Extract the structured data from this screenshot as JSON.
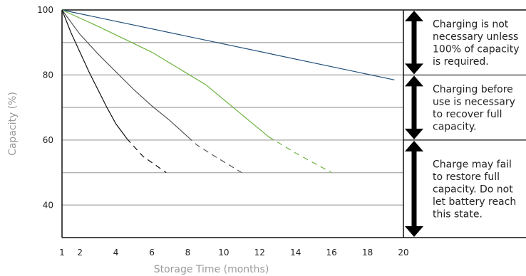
{
  "chart_data": {
    "type": "line",
    "xlabel": "Storage Time (months)",
    "ylabel": "Capacity (%)",
    "xlim": [
      1,
      20
    ],
    "ylim": [
      30,
      100
    ],
    "xticks": [
      "1",
      "2",
      "4",
      "6",
      "8",
      "10",
      "12",
      "14",
      "16",
      "18",
      "20"
    ],
    "yticks": [
      "100",
      "80",
      "60",
      "40"
    ],
    "grid_y": [
      90,
      80,
      70,
      60,
      50,
      40
    ],
    "series": [
      {
        "color": "#1f4e79",
        "points": [
          [
            1,
            100
          ],
          [
            19.5,
            78.5
          ]
        ]
      },
      {
        "color": "#6db33f",
        "points": [
          [
            1,
            100
          ],
          [
            3,
            95
          ],
          [
            6,
            87
          ],
          [
            9,
            77
          ],
          [
            12.5,
            61
          ],
          [
            14,
            56
          ],
          [
            16,
            50
          ]
        ],
        "dashed_from": 12.5
      },
      {
        "color": "#555555",
        "points": [
          [
            1,
            100
          ],
          [
            2,
            92.5
          ],
          [
            3,
            86.5
          ],
          [
            4,
            81
          ],
          [
            5,
            75.5
          ],
          [
            6,
            70.5
          ],
          [
            7,
            66
          ],
          [
            8,
            61
          ],
          [
            8.5,
            58.5
          ],
          [
            9.5,
            55
          ],
          [
            11,
            50
          ]
        ],
        "dashed_from": 8
      },
      {
        "color": "#111111",
        "points": [
          [
            1,
            100
          ],
          [
            1.5,
            93
          ],
          [
            2,
            87
          ],
          [
            2.5,
            81
          ],
          [
            3,
            75.5
          ],
          [
            3.5,
            70
          ],
          [
            4,
            65
          ],
          [
            4.6,
            60.5
          ],
          [
            5.5,
            55
          ],
          [
            6.8,
            50
          ]
        ],
        "dashed_from": 4.6
      }
    ],
    "bands": [
      {
        "from": 100,
        "to": 80,
        "text": [
          "Charging is not",
          "necessary unless",
          "100% of capacity",
          "is required."
        ]
      },
      {
        "from": 80,
        "to": 60,
        "text": [
          "Charging before",
          "use is necessary",
          "to recover full",
          "capacity."
        ]
      },
      {
        "from": 60,
        "to": 30,
        "text": [
          "Charge may fail",
          "to restore full",
          "capacity. Do not",
          "let battery reach",
          "this state."
        ]
      }
    ]
  }
}
